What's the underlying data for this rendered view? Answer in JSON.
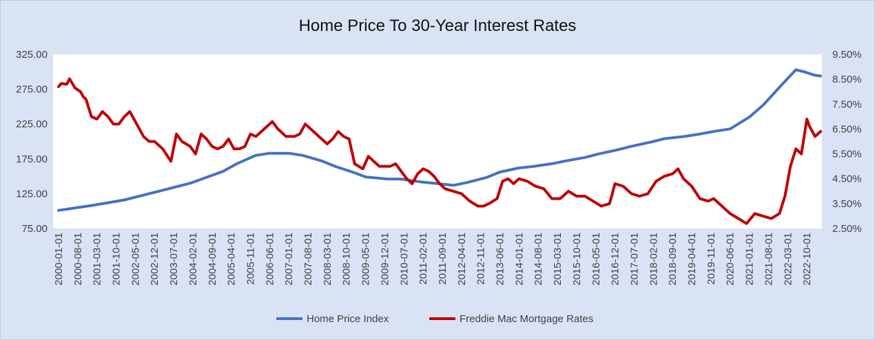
{
  "chart_data": {
    "type": "line",
    "title": "Home Price To 30-Year Interest Rates",
    "xlabel": "",
    "ylabel": "",
    "y_left": {
      "lim": [
        75,
        325
      ],
      "ticks": [
        75,
        125,
        175,
        225,
        275,
        325
      ],
      "tick_labels": [
        "75.00",
        "125.00",
        "175.00",
        "225.00",
        "275.00",
        "325.00"
      ]
    },
    "y_right": {
      "lim": [
        2.5,
        9.5
      ],
      "ticks": [
        2.5,
        3.5,
        4.5,
        5.5,
        6.5,
        7.5,
        8.5,
        9.5
      ],
      "tick_labels": [
        "2.50%",
        "3.50%",
        "4.50%",
        "5.50%",
        "6.50%",
        "7.50%",
        "8.50%",
        "9.50%"
      ]
    },
    "x_range": [
      "2000-01",
      "2023-03"
    ],
    "x_tick_labels": [
      "2000-01-01",
      "2000-08-01",
      "2001-03-01",
      "2001-10-01",
      "2002-05-01",
      "2002-12-01",
      "2003-07-01",
      "2004-02-01",
      "2004-09-01",
      "2005-04-01",
      "2005-11-01",
      "2006-06-01",
      "2007-01-01",
      "2007-08-01",
      "2008-03-01",
      "2008-10-01",
      "2009-05-01",
      "2009-12-01",
      "2010-07-01",
      "2011-02-01",
      "2011-09-01",
      "2012-04-01",
      "2012-11-01",
      "2013-06-01",
      "2014-01-01",
      "2014-08-01",
      "2015-03-01",
      "2015-10-01",
      "2016-05-01",
      "2016-12-01",
      "2017-07-01",
      "2018-02-01",
      "2018-09-01",
      "2019-04-01",
      "2019-11-01",
      "2020-06-01",
      "2021-01-01",
      "2021-08-01",
      "2022-03-01",
      "2022-10-01"
    ],
    "grid": false,
    "legend_position": "bottom",
    "series": [
      {
        "name": "Home Price Index",
        "axis": "left",
        "color": "#4472c4",
        "points": [
          [
            "2000-01",
            101
          ],
          [
            "2001-01",
            108
          ],
          [
            "2002-01",
            116
          ],
          [
            "2003-01",
            128
          ],
          [
            "2004-01",
            140
          ],
          [
            "2005-01",
            157
          ],
          [
            "2005-06",
            168
          ],
          [
            "2006-01",
            180
          ],
          [
            "2006-06",
            183
          ],
          [
            "2007-01",
            183
          ],
          [
            "2007-06",
            180
          ],
          [
            "2008-01",
            172
          ],
          [
            "2008-06",
            164
          ],
          [
            "2009-01",
            155
          ],
          [
            "2009-05",
            149
          ],
          [
            "2010-01",
            146
          ],
          [
            "2010-06",
            146
          ],
          [
            "2011-01",
            142
          ],
          [
            "2011-06",
            140
          ],
          [
            "2012-01",
            137
          ],
          [
            "2012-06",
            141
          ],
          [
            "2013-01",
            148
          ],
          [
            "2013-06",
            156
          ],
          [
            "2014-01",
            162
          ],
          [
            "2014-06",
            164
          ],
          [
            "2015-01",
            168
          ],
          [
            "2015-06",
            172
          ],
          [
            "2016-01",
            177
          ],
          [
            "2016-06",
            182
          ],
          [
            "2017-01",
            188
          ],
          [
            "2017-06",
            193
          ],
          [
            "2018-01",
            199
          ],
          [
            "2018-06",
            204
          ],
          [
            "2019-01",
            207
          ],
          [
            "2019-06",
            210
          ],
          [
            "2020-01",
            215
          ],
          [
            "2020-06",
            218
          ],
          [
            "2021-01",
            235
          ],
          [
            "2021-06",
            252
          ],
          [
            "2022-01",
            282
          ],
          [
            "2022-06",
            303
          ],
          [
            "2022-09",
            300
          ],
          [
            "2023-01",
            295
          ],
          [
            "2023-03",
            294
          ]
        ]
      },
      {
        "name": "Freddie Mac Mortgage Rates",
        "axis": "right",
        "color": "#c00000",
        "points": [
          [
            "2000-01",
            8.2
          ],
          [
            "2000-02",
            8.33
          ],
          [
            "2000-04",
            8.3
          ],
          [
            "2000-05",
            8.52
          ],
          [
            "2000-07",
            8.15
          ],
          [
            "2000-09",
            8.0
          ],
          [
            "2000-10",
            7.8
          ],
          [
            "2000-11",
            7.7
          ],
          [
            "2001-01",
            7.0
          ],
          [
            "2001-03",
            6.9
          ],
          [
            "2001-05",
            7.2
          ],
          [
            "2001-07",
            7.0
          ],
          [
            "2001-09",
            6.7
          ],
          [
            "2001-11",
            6.7
          ],
          [
            "2002-01",
            7.0
          ],
          [
            "2002-03",
            7.2
          ],
          [
            "2002-04",
            7.0
          ],
          [
            "2002-06",
            6.6
          ],
          [
            "2002-08",
            6.2
          ],
          [
            "2002-10",
            6.0
          ],
          [
            "2002-12",
            6.0
          ],
          [
            "2003-03",
            5.7
          ],
          [
            "2003-06",
            5.2
          ],
          [
            "2003-08",
            6.3
          ],
          [
            "2003-10",
            6.0
          ],
          [
            "2004-01",
            5.8
          ],
          [
            "2004-03",
            5.5
          ],
          [
            "2004-05",
            6.3
          ],
          [
            "2004-07",
            6.1
          ],
          [
            "2004-09",
            5.8
          ],
          [
            "2004-11",
            5.7
          ],
          [
            "2005-01",
            5.8
          ],
          [
            "2005-03",
            6.1
          ],
          [
            "2005-05",
            5.7
          ],
          [
            "2005-07",
            5.7
          ],
          [
            "2005-09",
            5.8
          ],
          [
            "2005-11",
            6.3
          ],
          [
            "2006-01",
            6.2
          ],
          [
            "2006-04",
            6.5
          ],
          [
            "2006-07",
            6.8
          ],
          [
            "2006-09",
            6.5
          ],
          [
            "2006-12",
            6.2
          ],
          [
            "2007-03",
            6.2
          ],
          [
            "2007-05",
            6.3
          ],
          [
            "2007-07",
            6.7
          ],
          [
            "2007-09",
            6.5
          ],
          [
            "2007-12",
            6.2
          ],
          [
            "2008-03",
            5.9
          ],
          [
            "2008-05",
            6.1
          ],
          [
            "2008-07",
            6.4
          ],
          [
            "2008-09",
            6.2
          ],
          [
            "2008-11",
            6.1
          ],
          [
            "2009-01",
            5.1
          ],
          [
            "2009-04",
            4.9
          ],
          [
            "2009-06",
            5.4
          ],
          [
            "2009-08",
            5.2
          ],
          [
            "2009-10",
            5.0
          ],
          [
            "2009-12",
            5.0
          ],
          [
            "2010-02",
            5.0
          ],
          [
            "2010-04",
            5.1
          ],
          [
            "2010-06",
            4.8
          ],
          [
            "2010-08",
            4.5
          ],
          [
            "2010-10",
            4.3
          ],
          [
            "2010-12",
            4.7
          ],
          [
            "2011-02",
            4.9
          ],
          [
            "2011-04",
            4.8
          ],
          [
            "2011-06",
            4.6
          ],
          [
            "2011-08",
            4.3
          ],
          [
            "2011-10",
            4.1
          ],
          [
            "2012-01",
            4.0
          ],
          [
            "2012-04",
            3.9
          ],
          [
            "2012-07",
            3.6
          ],
          [
            "2012-10",
            3.4
          ],
          [
            "2012-12",
            3.4
          ],
          [
            "2013-02",
            3.5
          ],
          [
            "2013-05",
            3.7
          ],
          [
            "2013-07",
            4.4
          ],
          [
            "2013-09",
            4.5
          ],
          [
            "2013-11",
            4.3
          ],
          [
            "2014-01",
            4.5
          ],
          [
            "2014-04",
            4.4
          ],
          [
            "2014-07",
            4.2
          ],
          [
            "2014-10",
            4.1
          ],
          [
            "2015-01",
            3.7
          ],
          [
            "2015-04",
            3.7
          ],
          [
            "2015-07",
            4.0
          ],
          [
            "2015-10",
            3.8
          ],
          [
            "2016-01",
            3.8
          ],
          [
            "2016-04",
            3.6
          ],
          [
            "2016-07",
            3.4
          ],
          [
            "2016-10",
            3.5
          ],
          [
            "2016-12",
            4.3
          ],
          [
            "2017-03",
            4.2
          ],
          [
            "2017-06",
            3.9
          ],
          [
            "2017-09",
            3.8
          ],
          [
            "2017-12",
            3.9
          ],
          [
            "2018-03",
            4.4
          ],
          [
            "2018-06",
            4.6
          ],
          [
            "2018-09",
            4.7
          ],
          [
            "2018-11",
            4.9
          ],
          [
            "2019-01",
            4.5
          ],
          [
            "2019-04",
            4.2
          ],
          [
            "2019-07",
            3.7
          ],
          [
            "2019-10",
            3.6
          ],
          [
            "2019-12",
            3.7
          ],
          [
            "2020-03",
            3.4
          ],
          [
            "2020-06",
            3.1
          ],
          [
            "2020-09",
            2.9
          ],
          [
            "2020-12",
            2.7
          ],
          [
            "2021-03",
            3.1
          ],
          [
            "2021-06",
            3.0
          ],
          [
            "2021-09",
            2.9
          ],
          [
            "2021-12",
            3.1
          ],
          [
            "2022-02",
            3.8
          ],
          [
            "2022-04",
            5.0
          ],
          [
            "2022-06",
            5.7
          ],
          [
            "2022-08",
            5.5
          ],
          [
            "2022-10",
            6.9
          ],
          [
            "2022-11",
            6.6
          ],
          [
            "2023-01",
            6.2
          ],
          [
            "2023-03",
            6.4
          ]
        ]
      }
    ]
  }
}
